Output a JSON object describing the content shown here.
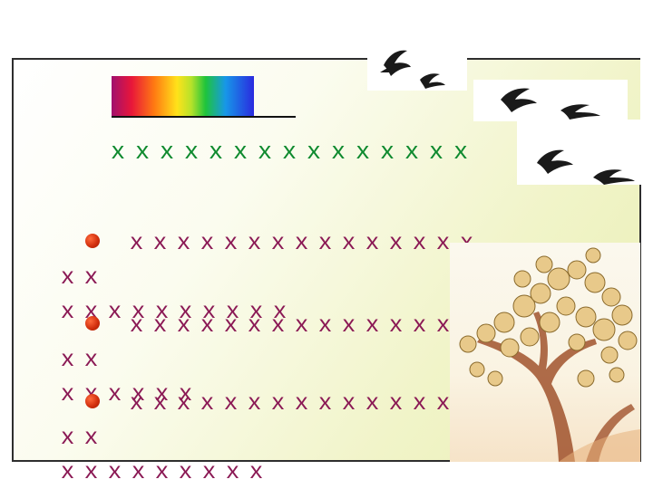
{
  "slide": {
    "title": "ｘｘｘｘｘｘｘｘｘｘｘｘｘｘｘ",
    "bullets": [
      {
        "line1": "ｘｘｘｘｘｘｘｘｘｘｘｘｘｘｘｘｘ",
        "line2": "ｘｘｘｘｘｘｘｘｘｘ"
      },
      {
        "line1": "ｘｘｘｘｘｘｘｘｘｘｘｘｘｘｘｘｘ",
        "line2": "ｘｘｘｘｘｘ"
      },
      {
        "line1": "ｘｘｘｘｘｘｘｘｘｘｘｘｘｘｘｘｘ",
        "line2": "ｘｘｘｘｘｘｘｘｘ"
      }
    ]
  },
  "colors": {
    "title": "#0f8a2f",
    "bullet_text": "#8b1a55",
    "bullet_dot": "#d2300e",
    "frame_border": "#2e2e2e"
  },
  "icons": {
    "birds": "flying-bird-icon",
    "tree": "autumn-tree-illustration",
    "rainbow": "rainbow-gradient-bar"
  }
}
